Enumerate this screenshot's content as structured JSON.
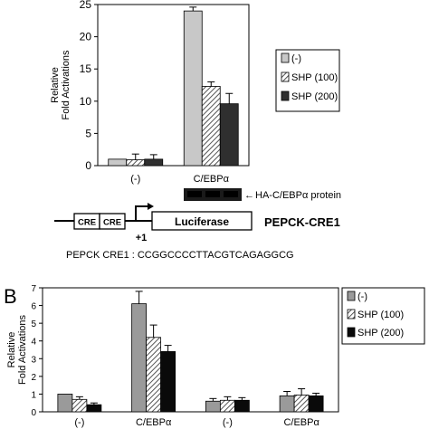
{
  "chart_data": [
    {
      "type": "bar",
      "panel": "",
      "ylabel": "Relative\nFold Activations",
      "ylim": [
        0,
        25
      ],
      "yticks": [
        0,
        5,
        10,
        15,
        20,
        25
      ],
      "categories": [
        "(-)",
        "C/EBPα"
      ],
      "series": [
        {
          "name": "(-)",
          "values": [
            1.0,
            24.0
          ],
          "errors": [
            0.0,
            0.6
          ],
          "color": "#c8c8c8",
          "pattern": "solid"
        },
        {
          "name": "SHP (100)",
          "values": [
            0.9,
            12.3
          ],
          "errors": [
            0.9,
            0.7
          ],
          "color": "#9a9a9a",
          "pattern": "hatch"
        },
        {
          "name": "SHP (200)",
          "values": [
            1.0,
            9.6
          ],
          "errors": [
            0.7,
            1.6
          ],
          "color": "#2f2f2f",
          "pattern": "solid"
        }
      ],
      "legend": "right"
    },
    {
      "type": "bar",
      "panel": "B",
      "ylabel": "Relative\nFold Activations",
      "ylim": [
        0,
        7
      ],
      "yticks": [
        0,
        1,
        2,
        3,
        4,
        5,
        6,
        7
      ],
      "categories": [
        "(-)",
        "C/EBPα",
        "(-)",
        "C/EBPα"
      ],
      "series": [
        {
          "name": "(-)",
          "values": [
            1.0,
            6.1,
            0.6,
            0.9
          ],
          "errors": [
            0.0,
            0.7,
            0.15,
            0.25
          ],
          "color": "#9a9a9a",
          "pattern": "solid"
        },
        {
          "name": "SHP (100)",
          "values": [
            0.7,
            4.2,
            0.65,
            0.95
          ],
          "errors": [
            0.15,
            0.7,
            0.2,
            0.35
          ],
          "color": "#9a9a9a",
          "pattern": "hatch"
        },
        {
          "name": "SHP (200)",
          "values": [
            0.4,
            3.4,
            0.65,
            0.9
          ],
          "errors": [
            0.1,
            0.35,
            0.15,
            0.15
          ],
          "color": "#0a0a0a",
          "pattern": "solid"
        }
      ],
      "legend": "right"
    }
  ],
  "blot": {
    "label": "HA-C/EBPα protein"
  },
  "construct": {
    "element1": "CRE",
    "element2": "CRE",
    "reporter": "Luciferase",
    "start": "+1",
    "name": "PEPCK-CRE1",
    "sequence_label": "PEPCK CRE1 : CCGGCCCCTTACGTCAGAGGCG"
  }
}
